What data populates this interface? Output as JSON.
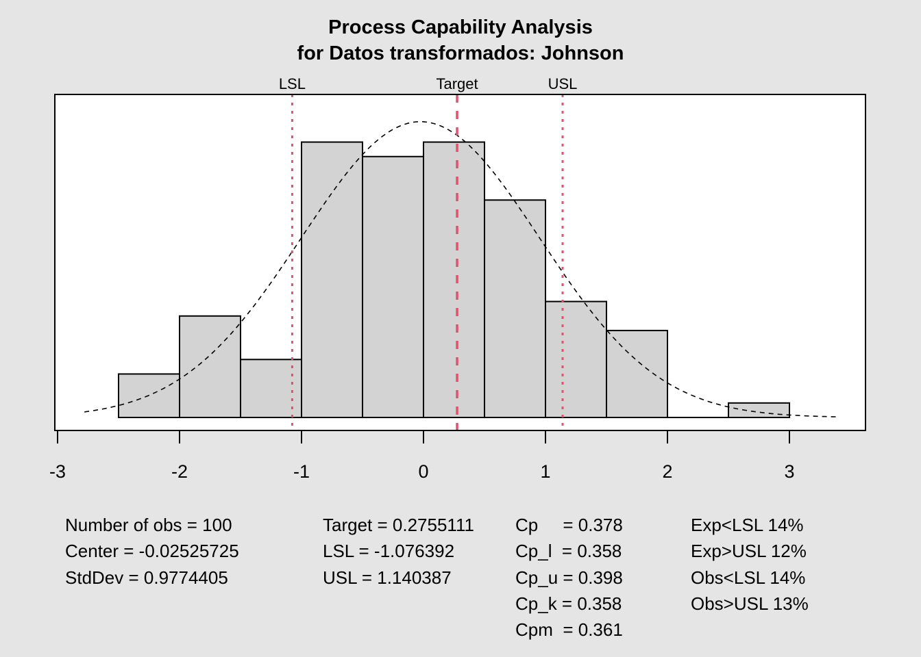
{
  "chart_data": {
    "type": "bar",
    "title": "Process Capability Analysis",
    "subtitle": "for Datos transformados: Johnson",
    "xlabel": "",
    "ylabel": "",
    "xlim": [
      -3.0,
      3.4
    ],
    "xticks": [
      -3,
      -2,
      -1,
      0,
      1,
      2,
      3
    ],
    "bins": [
      -2.5,
      -2.0,
      -1.5,
      -1.0,
      -0.5,
      0.0,
      0.5,
      1.0,
      1.5,
      2.0,
      2.5,
      3.0
    ],
    "counts": [
      3,
      7,
      4,
      19,
      18,
      19,
      15,
      8,
      6,
      0,
      1
    ],
    "n": 100,
    "density_scale": "density",
    "normal_curve": {
      "mean": -0.02525725,
      "sd": 0.9774405,
      "range": [
        -2.78,
        3.38
      ],
      "style": "dashed"
    },
    "spec_lines": [
      {
        "label": "LSL",
        "value": -1.076392,
        "style": "dotted"
      },
      {
        "label": "Target",
        "value": 0.2755111,
        "style": "dashed"
      },
      {
        "label": "USL",
        "value": 1.140387,
        "style": "dotted"
      }
    ],
    "grid": false,
    "colors": {
      "background": "#E5E5E5",
      "bar_fill": "#D3D3D3",
      "spec_line": "#DF536B",
      "panel": "#FFFFFF"
    }
  },
  "stats": {
    "col1": [
      "Number of obs = 100",
      "Center = -0.02525725",
      "StdDev = 0.9774405"
    ],
    "col2": [
      "Target = 0.2755111",
      "LSL = -1.076392",
      "USL = 1.140387"
    ],
    "col3": [
      "Cp     = 0.378",
      "Cp_l  = 0.358",
      "Cp_u = 0.398",
      "Cp_k = 0.358",
      "Cpm  = 0.361"
    ],
    "col4": [
      "Exp<LSL 14%",
      "Exp>USL 12%",
      "Obs<LSL 14%",
      "Obs>USL 13%"
    ]
  }
}
